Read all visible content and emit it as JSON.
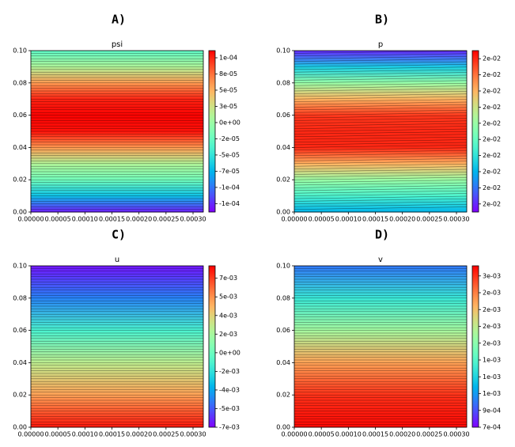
{
  "chart_data": [
    {
      "type": "contour",
      "panel": "A)",
      "title": "psi",
      "colormap": "rainbow",
      "y": [
        0,
        0.01,
        0.02,
        0.03,
        0.04,
        0.05,
        0.06,
        0.07,
        0.08,
        0.09,
        0.1
      ],
      "values": [
        -0.00013,
        -7e-05,
        -2e-05,
        1e-05,
        6e-05,
        0.000105,
        0.00011,
        0.0001,
        6e-05,
        1e-05,
        -3e-05
      ],
      "xlim": [
        0,
        0.000319
      ],
      "ylim": [
        0,
        0.1
      ],
      "xticks": [
        {
          "value": 0,
          "label": "0.00000"
        },
        {
          "value": 5e-05,
          "label": "0.00005"
        },
        {
          "value": 0.0001,
          "label": "0.00010"
        },
        {
          "value": 0.00015,
          "label": "0.00015"
        },
        {
          "value": 0.0002,
          "label": "0.00020"
        },
        {
          "value": 0.00025,
          "label": "0.00025"
        },
        {
          "value": 0.0003,
          "label": "0.00030"
        }
      ],
      "yticks": [
        {
          "value": 0,
          "label": "0.00"
        },
        {
          "value": 0.02,
          "label": "0.02"
        },
        {
          "value": 0.04,
          "label": "0.04"
        },
        {
          "value": 0.06,
          "label": "0.06"
        },
        {
          "value": 0.08,
          "label": "0.08"
        },
        {
          "value": 0.1,
          "label": "0.10"
        }
      ],
      "clim": [
        -0.000138,
        0.000111
      ],
      "cticks": [
        {
          "value": 0.0001,
          "label": "1e-04"
        },
        {
          "value": 7.5e-05,
          "label": "8e-05"
        },
        {
          "value": 5e-05,
          "label": "5e-05"
        },
        {
          "value": 2.5e-05,
          "label": "3e-05"
        },
        {
          "value": 0,
          "label": "0e+00"
        },
        {
          "value": -2.5e-05,
          "label": "-2e-05"
        },
        {
          "value": -5e-05,
          "label": "-5e-05"
        },
        {
          "value": -7.5e-05,
          "label": "-7e-05"
        },
        {
          "value": -0.0001,
          "label": "-1e-04"
        },
        {
          "value": -0.000125,
          "label": "-1e-04"
        }
      ]
    },
    {
      "type": "contour",
      "panel": "B)",
      "title": "p",
      "colormap": "rainbow",
      "y": [
        0,
        0.01,
        0.02,
        0.03,
        0.04,
        0.05,
        0.06,
        0.07,
        0.08,
        0.09,
        0.1
      ],
      "values": [
        0.01998,
        0.019995,
        0.02001,
        0.02003,
        0.02005,
        0.02005,
        0.020048,
        0.02003,
        0.02001,
        0.019985,
        0.01996
      ],
      "xlim": [
        0,
        0.000319
      ],
      "ylim": [
        0,
        0.1
      ],
      "xticks": [
        {
          "value": 0,
          "label": "0.00000"
        },
        {
          "value": 5e-05,
          "label": "0.00005"
        },
        {
          "value": 0.0001,
          "label": "0.00010"
        },
        {
          "value": 0.00015,
          "label": "0.00015"
        },
        {
          "value": 0.0002,
          "label": "0.00020"
        },
        {
          "value": 0.00025,
          "label": "0.00025"
        },
        {
          "value": 0.0003,
          "label": "0.00030"
        }
      ],
      "yticks": [
        {
          "value": 0,
          "label": "0.00"
        },
        {
          "value": 0.02,
          "label": "0.02"
        },
        {
          "value": 0.04,
          "label": "0.04"
        },
        {
          "value": 0.06,
          "label": "0.06"
        },
        {
          "value": 0.08,
          "label": "0.08"
        },
        {
          "value": 0.1,
          "label": "0.10"
        }
      ],
      "clim": [
        0.019955,
        0.020055
      ],
      "cticks": [
        {
          "value": 0.02005,
          "label": "2e-02"
        },
        {
          "value": 0.02004,
          "label": "2e-02"
        },
        {
          "value": 0.02003,
          "label": "2e-02"
        },
        {
          "value": 0.02002,
          "label": "2e-02"
        },
        {
          "value": 0.02001,
          "label": "2e-02"
        },
        {
          "value": 0.02,
          "label": "2e-02"
        },
        {
          "value": 0.01999,
          "label": "2e-02"
        },
        {
          "value": 0.01998,
          "label": "2e-02"
        },
        {
          "value": 0.01997,
          "label": "2e-02"
        },
        {
          "value": 0.01996,
          "label": "2e-02"
        }
      ]
    },
    {
      "type": "contour",
      "panel": "C)",
      "title": "u",
      "colormap": "rainbow",
      "y": [
        0,
        0.02,
        0.04,
        0.06,
        0.08,
        0.1
      ],
      "values": [
        0.008,
        0.005,
        0.0025,
        -0.001,
        -0.0045,
        -0.0068
      ],
      "xlim": [
        0,
        0.000319
      ],
      "ylim": [
        0,
        0.1
      ],
      "xticks": [
        {
          "value": 0,
          "label": "0.00000"
        },
        {
          "value": 5e-05,
          "label": "0.00005"
        },
        {
          "value": 0.0001,
          "label": "0.00010"
        },
        {
          "value": 0.00015,
          "label": "0.00015"
        },
        {
          "value": 0.0002,
          "label": "0.00020"
        },
        {
          "value": 0.00025,
          "label": "0.00025"
        },
        {
          "value": 0.0003,
          "label": "0.00030"
        }
      ],
      "yticks": [
        {
          "value": 0,
          "label": "0.00"
        },
        {
          "value": 0.02,
          "label": "0.02"
        },
        {
          "value": 0.04,
          "label": "0.04"
        },
        {
          "value": 0.06,
          "label": "0.06"
        },
        {
          "value": 0.08,
          "label": "0.08"
        },
        {
          "value": 0.1,
          "label": "0.10"
        }
      ],
      "clim": [
        -0.0072,
        0.0084
      ],
      "cticks": [
        {
          "value": 0.0072,
          "label": "7e-03"
        },
        {
          "value": 0.0054,
          "label": "5e-03"
        },
        {
          "value": 0.0036,
          "label": "4e-03"
        },
        {
          "value": 0.0018,
          "label": "2e-03"
        },
        {
          "value": 0,
          "label": "0e+00"
        },
        {
          "value": -0.0018,
          "label": "-2e-03"
        },
        {
          "value": -0.0036,
          "label": "-4e-03"
        },
        {
          "value": -0.0054,
          "label": "-5e-03"
        },
        {
          "value": -0.0072,
          "label": "-7e-03"
        }
      ]
    },
    {
      "type": "contour",
      "panel": "D)",
      "title": "v",
      "colormap": "rainbow",
      "y": [
        0,
        0.02,
        0.04,
        0.06,
        0.08,
        0.1
      ],
      "values": [
        0.0026,
        0.0025,
        0.0022,
        0.0018,
        0.0014,
        0.001
      ],
      "xlim": [
        0,
        0.000319
      ],
      "ylim": [
        0,
        0.1
      ],
      "xticks": [
        {
          "value": 0,
          "label": "0.00000"
        },
        {
          "value": 5e-05,
          "label": "0.00005"
        },
        {
          "value": 0.0001,
          "label": "0.00010"
        },
        {
          "value": 0.00015,
          "label": "0.00015"
        },
        {
          "value": 0.0002,
          "label": "0.00020"
        },
        {
          "value": 0.00025,
          "label": "0.00025"
        },
        {
          "value": 0.0003,
          "label": "0.00030"
        }
      ],
      "yticks": [
        {
          "value": 0,
          "label": "0.00"
        },
        {
          "value": 0.02,
          "label": "0.02"
        },
        {
          "value": 0.04,
          "label": "0.04"
        },
        {
          "value": 0.06,
          "label": "0.06"
        },
        {
          "value": 0.08,
          "label": "0.08"
        },
        {
          "value": 0.1,
          "label": "0.10"
        }
      ],
      "clim": [
        0.0007,
        0.00262
      ],
      "cticks": [
        {
          "value": 0.0025,
          "label": "3e-03"
        },
        {
          "value": 0.0023,
          "label": "2e-03"
        },
        {
          "value": 0.0021,
          "label": "2e-03"
        },
        {
          "value": 0.0019,
          "label": "2e-03"
        },
        {
          "value": 0.0017,
          "label": "2e-03"
        },
        {
          "value": 0.0015,
          "label": "1e-03"
        },
        {
          "value": 0.0013,
          "label": "1e-03"
        },
        {
          "value": 0.0011,
          "label": "1e-03"
        },
        {
          "value": 0.0009,
          "label": "9e-04"
        },
        {
          "value": 0.0007,
          "label": "7e-04"
        }
      ]
    }
  ]
}
